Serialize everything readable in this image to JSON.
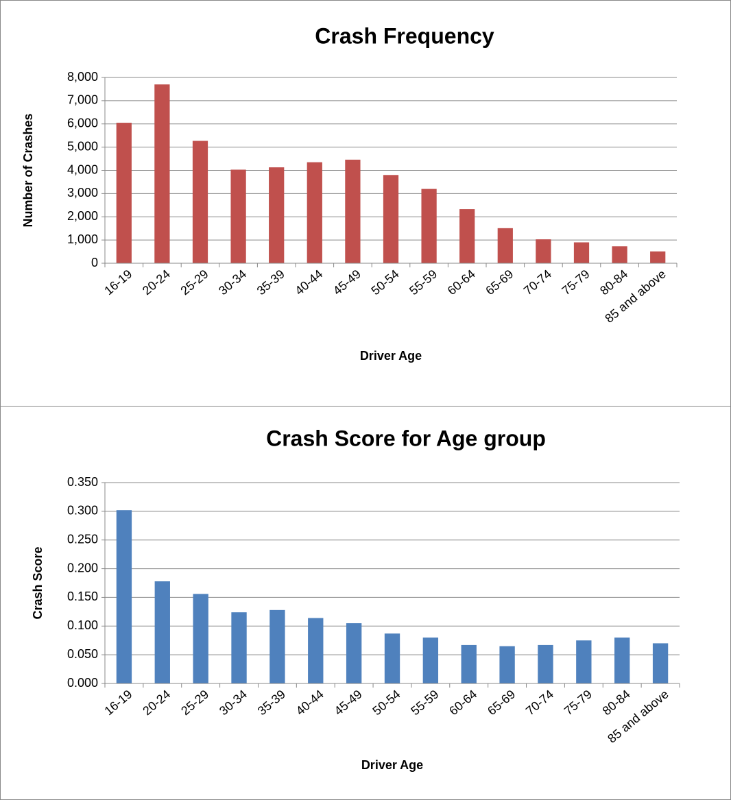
{
  "chart_data": [
    {
      "type": "bar",
      "title": "Crash Frequency",
      "x_label": "Driver Age",
      "y_label": "Number of Crashes",
      "categories": [
        "16-19",
        "20-24",
        "25-29",
        "30-34",
        "35-39",
        "40-44",
        "45-49",
        "50-54",
        "55-59",
        "60-64",
        "65-69",
        "70-74",
        "75-79",
        "80-84",
        "85 and above"
      ],
      "values": [
        6050,
        7700,
        5270,
        4030,
        4130,
        4350,
        4460,
        3800,
        3200,
        2330,
        1510,
        1030,
        900,
        730,
        510
      ],
      "color": "#c0504d",
      "ylim": [
        0,
        8000
      ],
      "yticks": [
        0,
        {
          "value": 1000,
          "label": "1,000"
        },
        {
          "value": 2000,
          "label": "2,000"
        },
        {
          "value": 3000,
          "label": "3,000"
        },
        {
          "value": 4000,
          "label": "4,000"
        },
        {
          "value": 5000,
          "label": "5,000"
        },
        {
          "value": 6000,
          "label": "6,000"
        },
        {
          "value": 7000,
          "label": "7,000"
        },
        {
          "value": 8000,
          "label": "8,000"
        }
      ],
      "grid": true
    },
    {
      "type": "bar",
      "title": "Crash Score for Age group",
      "x_label": "Driver Age",
      "y_label": "Crash Score",
      "categories": [
        "16-19",
        "20-24",
        "25-29",
        "30-34",
        "35-39",
        "40-44",
        "45-49",
        "50-54",
        "55-59",
        "60-64",
        "65-69",
        "70-74",
        "75-79",
        "80-84",
        "85 and above"
      ],
      "values": [
        0.302,
        0.178,
        0.156,
        0.124,
        0.128,
        0.114,
        0.105,
        0.087,
        0.08,
        0.067,
        0.065,
        0.067,
        0.075,
        0.08,
        0.07
      ],
      "color": "#4f81bd",
      "ylim": [
        0,
        0.35
      ],
      "yticks": [
        {
          "value": 0,
          "label": "0.000"
        },
        {
          "value": 0.05,
          "label": "0.050"
        },
        {
          "value": 0.1,
          "label": "0.100"
        },
        {
          "value": 0.15,
          "label": "0.150"
        },
        {
          "value": 0.2,
          "label": "0.200"
        },
        {
          "value": 0.25,
          "label": "0.250"
        },
        {
          "value": 0.3,
          "label": "0.300"
        },
        {
          "value": 0.35,
          "label": "0.350"
        }
      ],
      "grid": true
    }
  ]
}
